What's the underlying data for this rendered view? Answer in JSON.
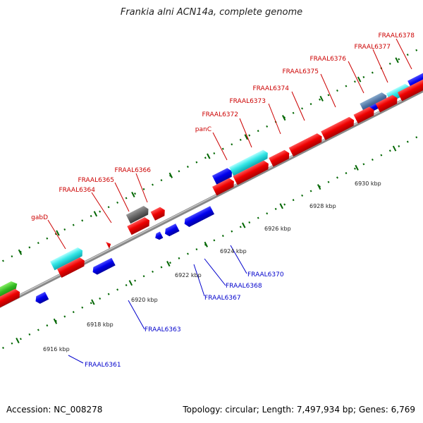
{
  "title": "Frankia alni ACN14a, complete genome",
  "footer": {
    "accession": "Accession: NC_008278",
    "summary": "Topology: circular; Length: 7,497,934 bp; Genes: 6,769"
  },
  "colors": {
    "label_forward": "#cc0000",
    "label_reverse": "#0000cc",
    "tick": "#006600",
    "backbone": "#999999"
  },
  "kbp_ticks": [
    "6916 kbp",
    "6918 kbp",
    "6920 kbp",
    "6922 kbp",
    "6924 kbp",
    "6926 kbp",
    "6928 kbp",
    "6930 kbp"
  ],
  "forward_gene_labels": [
    "gabD",
    "FRAAL6364",
    "FRAAL6365",
    "FRAAL6366",
    "panC",
    "FRAAL6372",
    "FRAAL6373",
    "FRAAL6374",
    "FRAAL6375",
    "FRAAL6376",
    "FRAAL6377",
    "FRAAL6378"
  ],
  "reverse_gene_labels": [
    "FRAAL6361",
    "FRAAL6363",
    "FRAAL6367",
    "FRAAL6368",
    "FRAAL6370"
  ]
}
